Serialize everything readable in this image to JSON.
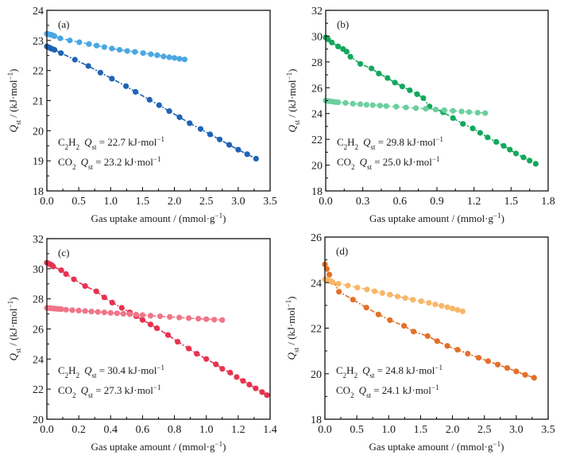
{
  "chart_data": [
    {
      "type": "line",
      "panel": "(a)",
      "xlabel": "Gas uptake amount / (mmol·g⁻¹)",
      "ylabel": "Q_st / (kJ·mol⁻¹)",
      "xlim": [
        0,
        3.5
      ],
      "ylim": [
        18,
        24
      ],
      "xticks": [
        "0.0",
        "0.5",
        "1.0",
        "1.5",
        "2.0",
        "2.5",
        "3.0",
        "3.5"
      ],
      "yticks": [
        "18",
        "19",
        "20",
        "21",
        "22",
        "23",
        "24"
      ],
      "xtick_values": [
        0,
        0.5,
        1.0,
        1.5,
        2.0,
        2.5,
        3.0,
        3.5
      ],
      "ytick_values": [
        18,
        19,
        20,
        21,
        22,
        23,
        24
      ],
      "annotations": [
        {
          "gas": "C2H2",
          "text": "Q_st = 22.7 kJ·mol⁻¹"
        },
        {
          "gas": "CO2",
          "text": "Q_st = 23.2 kJ·mol⁻¹"
        }
      ],
      "series": [
        {
          "name": "C2H2",
          "color": "#1f63b5",
          "x": [
            0.0,
            0.02,
            0.04,
            0.06,
            0.08,
            0.12,
            0.22,
            0.44,
            0.65,
            0.84,
            1.02,
            1.24,
            1.39,
            1.61,
            1.76,
            1.92,
            2.08,
            2.24,
            2.41,
            2.56,
            2.71,
            2.86,
            3.0,
            3.14,
            3.28
          ],
          "y": [
            22.8,
            22.78,
            22.76,
            22.74,
            22.72,
            22.69,
            22.58,
            22.36,
            22.15,
            21.93,
            21.73,
            21.48,
            21.29,
            21.03,
            20.85,
            20.65,
            20.45,
            20.25,
            20.06,
            19.88,
            19.71,
            19.53,
            19.37,
            19.22,
            19.07
          ]
        },
        {
          "name": "CO2",
          "color": "#4aa7e3",
          "x": [
            0.0,
            0.02,
            0.04,
            0.06,
            0.08,
            0.1,
            0.12,
            0.21,
            0.36,
            0.51,
            0.66,
            0.78,
            0.9,
            1.02,
            1.14,
            1.26,
            1.38,
            1.51,
            1.63,
            1.73,
            1.83,
            1.92,
            2.0,
            2.08,
            2.16
          ],
          "y": [
            23.22,
            23.21,
            23.2,
            23.19,
            23.18,
            23.16,
            23.14,
            23.07,
            23.0,
            22.94,
            22.88,
            22.83,
            22.78,
            22.73,
            22.69,
            22.65,
            22.62,
            22.58,
            22.54,
            22.51,
            22.47,
            22.44,
            22.42,
            22.39,
            22.37
          ]
        }
      ]
    },
    {
      "type": "line",
      "panel": "(b)",
      "xlabel": "Gas uptake amount / (mmol·g⁻¹)",
      "ylabel": "Q_st / (kJ·mol⁻¹)",
      "xlim": [
        0,
        1.8
      ],
      "ylim": [
        18,
        32
      ],
      "xticks": [
        "0.0",
        "0.3",
        "0.6",
        "0.9",
        "1.2",
        "1.5",
        "1.8"
      ],
      "yticks": [
        "18",
        "20",
        "22",
        "24",
        "26",
        "28",
        "30",
        "32"
      ],
      "xtick_values": [
        0,
        0.3,
        0.6,
        0.9,
        1.2,
        1.5,
        1.8
      ],
      "ytick_values": [
        18,
        20,
        22,
        24,
        26,
        28,
        30,
        32
      ],
      "annotations": [
        {
          "gas": "C2H2",
          "text": "Q_st = 29.8 kJ·mol⁻¹"
        },
        {
          "gas": "CO2",
          "text": "Q_st = 25.0 kJ·mol⁻¹"
        }
      ],
      "series": [
        {
          "name": "C2H2",
          "color": "#13a85c",
          "x": [
            0.0,
            0.02,
            0.05,
            0.1,
            0.14,
            0.17,
            0.2,
            0.28,
            0.37,
            0.43,
            0.5,
            0.56,
            0.62,
            0.68,
            0.74,
            0.79,
            0.84,
            0.95,
            1.03,
            1.11,
            1.19,
            1.25,
            1.31,
            1.38,
            1.44,
            1.49,
            1.54,
            1.6,
            1.65,
            1.7
          ],
          "y": [
            29.9,
            29.75,
            29.5,
            29.2,
            29.0,
            28.8,
            28.4,
            27.85,
            27.5,
            27.1,
            26.75,
            26.4,
            26.1,
            25.8,
            25.5,
            25.2,
            24.55,
            24.1,
            23.65,
            23.2,
            22.85,
            22.5,
            22.15,
            21.8,
            21.5,
            21.2,
            20.9,
            20.6,
            20.35,
            20.1
          ]
        },
        {
          "name": "CO2",
          "color": "#6ccf9f",
          "x": [
            0.0,
            0.02,
            0.04,
            0.06,
            0.08,
            0.1,
            0.16,
            0.22,
            0.28,
            0.33,
            0.38,
            0.44,
            0.49,
            0.57,
            0.65,
            0.73,
            0.81,
            0.89,
            0.96,
            1.03,
            1.1,
            1.16,
            1.23,
            1.29
          ],
          "y": [
            25.0,
            24.97,
            24.94,
            24.92,
            24.89,
            24.87,
            24.82,
            24.76,
            24.72,
            24.68,
            24.65,
            24.62,
            24.58,
            24.53,
            24.47,
            24.42,
            24.37,
            24.31,
            24.26,
            24.21,
            24.16,
            24.12,
            24.07,
            24.03
          ]
        }
      ]
    },
    {
      "type": "line",
      "panel": "(c)",
      "xlabel": "Gas uptake amount / (mmol·g⁻¹)",
      "ylabel": "Q_st / (kJ·mol⁻¹)",
      "xlim": [
        0,
        1.4
      ],
      "ylim": [
        20,
        32
      ],
      "xticks": [
        "0.0",
        "0.2",
        "0.4",
        "0.6",
        "0.8",
        "1.0",
        "1.2",
        "1.4"
      ],
      "yticks": [
        "20",
        "22",
        "24",
        "26",
        "28",
        "30",
        "32"
      ],
      "xtick_values": [
        0,
        0.2,
        0.4,
        0.6,
        0.8,
        1.0,
        1.2,
        1.4
      ],
      "ytick_values": [
        20,
        22,
        24,
        26,
        28,
        30,
        32
      ],
      "annotations": [
        {
          "gas": "C2H2",
          "text": "Q_st = 30.4 kJ·mol⁻¹"
        },
        {
          "gas": "CO2",
          "text": "Q_st = 27.3 kJ·mol⁻¹"
        }
      ],
      "series": [
        {
          "name": "C2H2",
          "color": "#e6334f",
          "x": [
            0.0,
            0.01,
            0.02,
            0.03,
            0.04,
            0.09,
            0.12,
            0.17,
            0.24,
            0.31,
            0.36,
            0.41,
            0.47,
            0.52,
            0.56,
            0.6,
            0.65,
            0.69,
            0.76,
            0.82,
            0.89,
            0.94,
            1.0,
            1.06,
            1.1,
            1.15,
            1.19,
            1.23,
            1.27,
            1.31,
            1.35,
            1.38
          ],
          "y": [
            30.4,
            30.35,
            30.3,
            30.25,
            30.15,
            29.9,
            29.65,
            29.3,
            28.85,
            28.5,
            28.1,
            27.75,
            27.4,
            27.1,
            26.85,
            26.6,
            26.3,
            26.05,
            25.6,
            25.15,
            24.7,
            24.35,
            24.0,
            23.65,
            23.35,
            23.1,
            22.8,
            22.55,
            22.3,
            22.05,
            21.8,
            21.6
          ]
        },
        {
          "name": "CO2",
          "color": "#f07588",
          "x": [
            0.0,
            0.01,
            0.02,
            0.03,
            0.04,
            0.05,
            0.06,
            0.07,
            0.08,
            0.09,
            0.12,
            0.16,
            0.2,
            0.24,
            0.28,
            0.32,
            0.36,
            0.4,
            0.44,
            0.48,
            0.52,
            0.56,
            0.6,
            0.65,
            0.71,
            0.77,
            0.83,
            0.89,
            0.95,
            1.0,
            1.05,
            1.1
          ],
          "y": [
            27.4,
            27.39,
            27.38,
            27.37,
            27.36,
            27.35,
            27.34,
            27.33,
            27.32,
            27.31,
            27.28,
            27.25,
            27.22,
            27.19,
            27.16,
            27.13,
            27.1,
            27.07,
            27.04,
            27.01,
            26.98,
            26.95,
            26.92,
            26.88,
            26.84,
            26.8,
            26.76,
            26.72,
            26.68,
            26.65,
            26.62,
            26.59
          ]
        }
      ]
    },
    {
      "type": "line",
      "panel": "(d)",
      "xlabel": "Gas uptake amount / (mmol·g⁻¹)",
      "ylabel": "Q_st / (kJ·mol⁻¹)",
      "xlim": [
        0,
        3.5
      ],
      "ylim": [
        18,
        26
      ],
      "xticks": [
        "0.0",
        "0.5",
        "1.0",
        "1.5",
        "2.0",
        "2.5",
        "3.0",
        "3.5"
      ],
      "yticks": [
        "18",
        "20",
        "22",
        "24",
        "26"
      ],
      "xtick_values": [
        0,
        0.5,
        1.0,
        1.5,
        2.0,
        2.5,
        3.0,
        3.5
      ],
      "ytick_values": [
        18,
        20,
        22,
        24,
        26
      ],
      "annotations": [
        {
          "gas": "C2H2",
          "text": "Q_st = 24.8 kJ·mol⁻¹"
        },
        {
          "gas": "CO2",
          "text": "Q_st = 24.1 kJ·mol⁻¹"
        }
      ],
      "series": [
        {
          "name": "C2H2",
          "color": "#e2702a",
          "x": [
            0.0,
            0.03,
            0.07,
            0.22,
            0.44,
            0.65,
            0.84,
            1.02,
            1.24,
            1.39,
            1.61,
            1.76,
            1.92,
            2.08,
            2.24,
            2.41,
            2.56,
            2.71,
            2.86,
            3.0,
            3.14,
            3.28
          ],
          "y": [
            24.8,
            24.6,
            24.35,
            23.6,
            23.25,
            22.9,
            22.6,
            22.35,
            22.1,
            21.85,
            21.65,
            21.43,
            21.22,
            21.05,
            20.88,
            20.7,
            20.55,
            20.4,
            20.25,
            20.1,
            19.95,
            19.82
          ]
        },
        {
          "name": "CO2",
          "color": "#f8b768",
          "x": [
            0.0,
            0.02,
            0.04,
            0.06,
            0.08,
            0.1,
            0.12,
            0.21,
            0.36,
            0.51,
            0.66,
            0.78,
            0.9,
            1.02,
            1.14,
            1.26,
            1.38,
            1.51,
            1.63,
            1.73,
            1.83,
            1.92,
            2.0,
            2.08,
            2.16
          ],
          "y": [
            24.15,
            24.13,
            24.11,
            24.09,
            24.07,
            24.05,
            24.02,
            23.95,
            23.87,
            23.78,
            23.7,
            23.62,
            23.54,
            23.47,
            23.39,
            23.32,
            23.25,
            23.18,
            23.11,
            23.04,
            22.98,
            22.92,
            22.86,
            22.8,
            22.74
          ]
        }
      ]
    }
  ]
}
